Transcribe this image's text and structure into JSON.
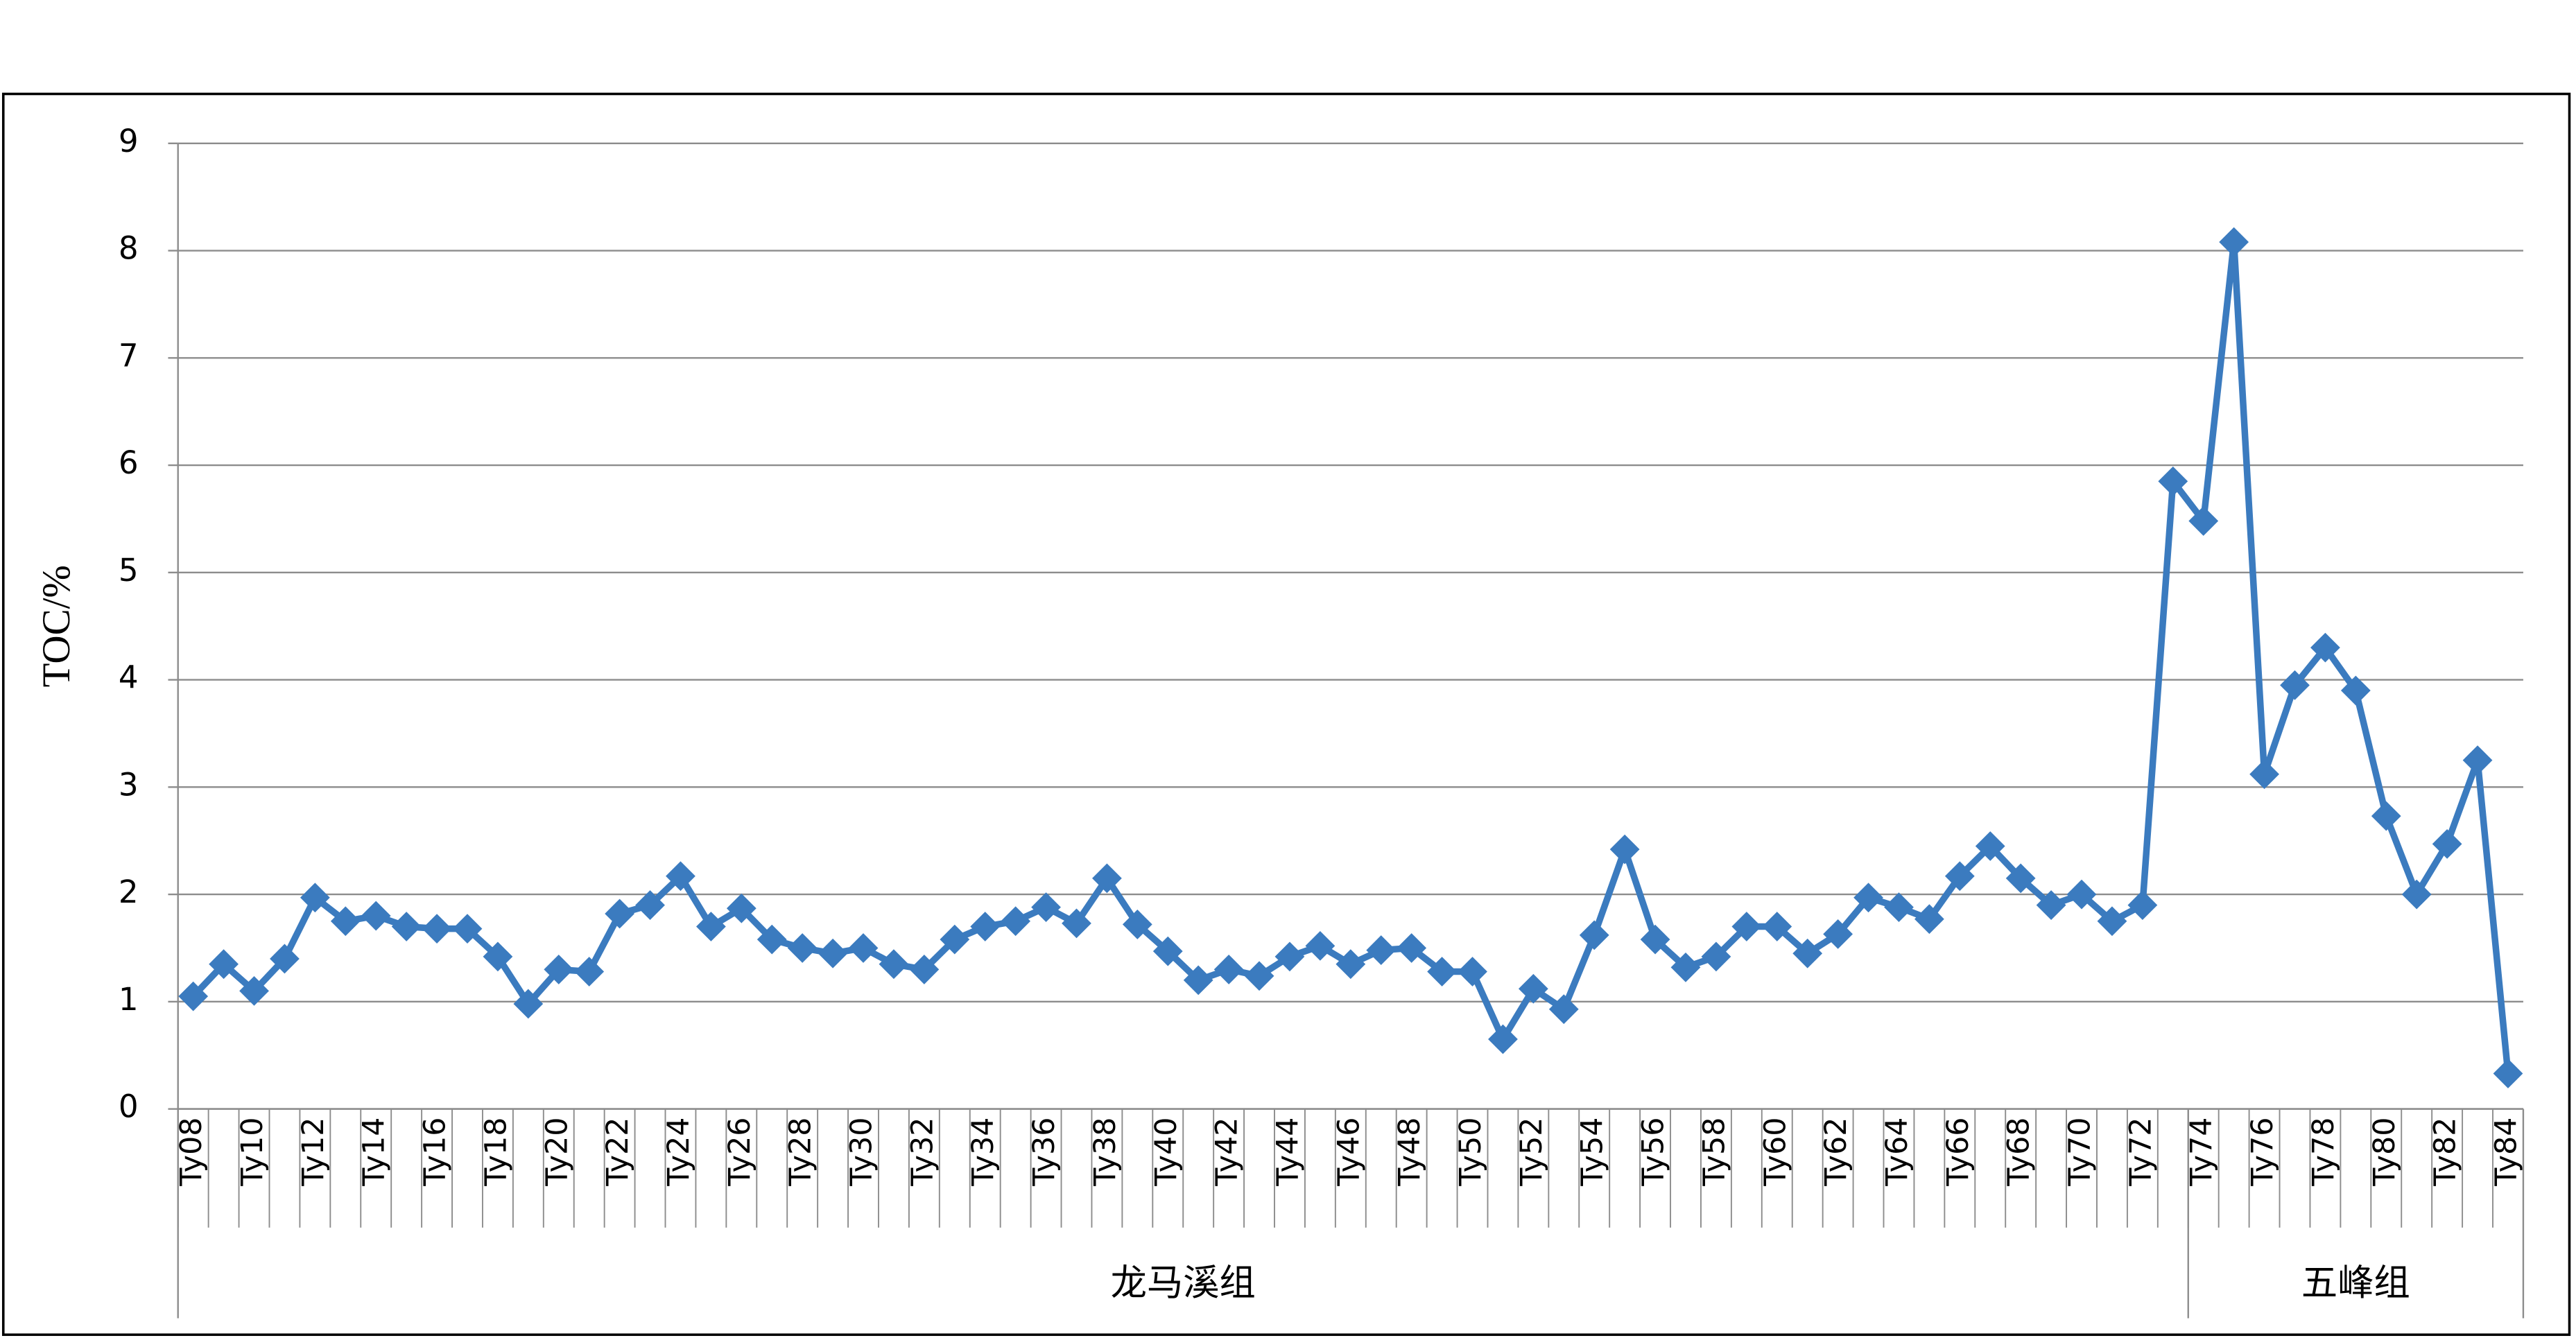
{
  "chart_data": {
    "type": "line",
    "y_label": "TOC/%",
    "categories": [
      "Ty08",
      null,
      "Ty10",
      null,
      "Ty12",
      null,
      "Ty14",
      null,
      "Ty16",
      null,
      "Ty18",
      null,
      "Ty20",
      null,
      "Ty22",
      null,
      "Ty24",
      null,
      "Ty26",
      null,
      "Ty28",
      null,
      "Ty30",
      null,
      "Ty32",
      null,
      "Ty34",
      null,
      "Ty36",
      null,
      "Ty38",
      null,
      "Ty40",
      null,
      "Ty42",
      null,
      "Ty44",
      null,
      "Ty46",
      null,
      "Ty48",
      null,
      "Ty50",
      null,
      "Ty52",
      null,
      "Ty54",
      null,
      "Ty56",
      null,
      "Ty58",
      null,
      "Ty60",
      null,
      "Ty62",
      null,
      "Ty64",
      null,
      "Ty66",
      null,
      "Ty68",
      null,
      "Ty70",
      null,
      "Ty72",
      null,
      "Ty74",
      null,
      "Ty76",
      null,
      "Ty78",
      null,
      "Ty80",
      null,
      "Ty82",
      null,
      "Ty84"
    ],
    "groups": [
      {
        "name": "龙马溪组",
        "count": 66
      },
      {
        "name": "五峰组",
        "count": 11
      }
    ],
    "series": [
      {
        "name": "TOC",
        "color": "#3b7bbf",
        "values": [
          1.05,
          1.35,
          1.1,
          1.4,
          1.97,
          1.75,
          1.8,
          1.7,
          1.68,
          1.68,
          1.42,
          0.98,
          1.3,
          1.28,
          1.82,
          1.9,
          2.17,
          1.7,
          1.87,
          1.58,
          1.5,
          1.45,
          1.5,
          1.35,
          1.3,
          1.58,
          1.7,
          1.75,
          1.88,
          1.73,
          2.15,
          1.72,
          1.47,
          1.2,
          1.3,
          1.24,
          1.42,
          1.52,
          1.35,
          1.48,
          1.5,
          1.28,
          1.28,
          0.65,
          1.12,
          0.93,
          1.62,
          2.42,
          1.58,
          1.32,
          1.42,
          1.7,
          1.7,
          1.45,
          1.63,
          1.97,
          1.88,
          1.77,
          2.17,
          2.45,
          2.15,
          1.9,
          2.0,
          1.75,
          1.9,
          5.85,
          5.48,
          8.08,
          3.12,
          3.95,
          4.3,
          3.9,
          2.73,
          2.0,
          2.47,
          3.25,
          0.33
        ]
      }
    ],
    "ylim": [
      0,
      9
    ],
    "yticks": [
      0,
      1,
      2,
      3,
      4,
      5,
      6,
      7,
      8,
      9
    ],
    "grid": true,
    "marker": "diamond"
  }
}
